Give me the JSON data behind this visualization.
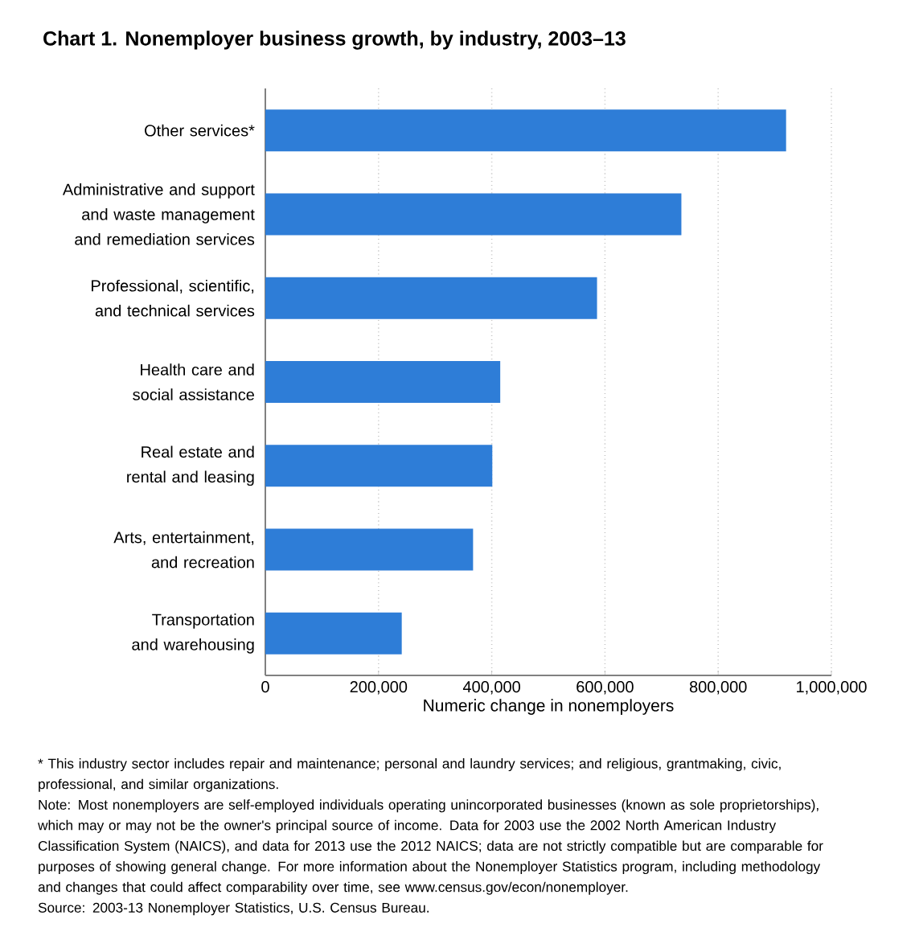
{
  "chart_data": {
    "type": "bar",
    "orientation": "horizontal",
    "title": "Chart 1. Nonemployer business growth, by industry, 2003–13",
    "xlabel": "Numeric change in nonemployers",
    "categories": [
      "Other services*",
      "Administrative and support and waste management and remediation services",
      "Professional, scientific, and technical services",
      "Health care and social assistance",
      "Real estate and rental and leasing",
      "Arts, entertainment, and recreation",
      "Transportation and warehousing"
    ],
    "values": [
      920000,
      735000,
      586000,
      415000,
      401000,
      367000,
      241000
    ],
    "color": "#2e7dd7",
    "xlim": [
      0,
      1000000
    ],
    "xticks": [
      0,
      {
        "value": 200000,
        "label": "200,000"
      },
      {
        "value": 400000,
        "label": "400,000"
      },
      {
        "value": 600000,
        "label": "600,000"
      },
      {
        "value": 800000,
        "label": "800,000"
      },
      {
        "value": 1000000,
        "label": "1,000,000"
      }
    ],
    "grid": "x",
    "annotations": [
      "* This industry sector includes repair and maintenance; personal and laundry services; and religious, grantmaking, civic, professional, and similar organizations.",
      "Note: Most nonemployers are self-employed individuals operating unincorporated businesses (known as sole proprietorships), which may or may not be the owner's principal source of income. Data for 2003 use the 2002 North American Industry Classification System (NAICS), and data for 2013 use the 2012 NAICS; data are not strictly compatible but are comparable for purposes of showing general change. For more information about the Nonemployer Statistics program, including methodology and changes that could affect comparability over time, see www.census.gov/econ/nonemployer.",
      "Source: 2003-13 Nonemployer Statistics, U.S. Census Bureau."
    ]
  }
}
